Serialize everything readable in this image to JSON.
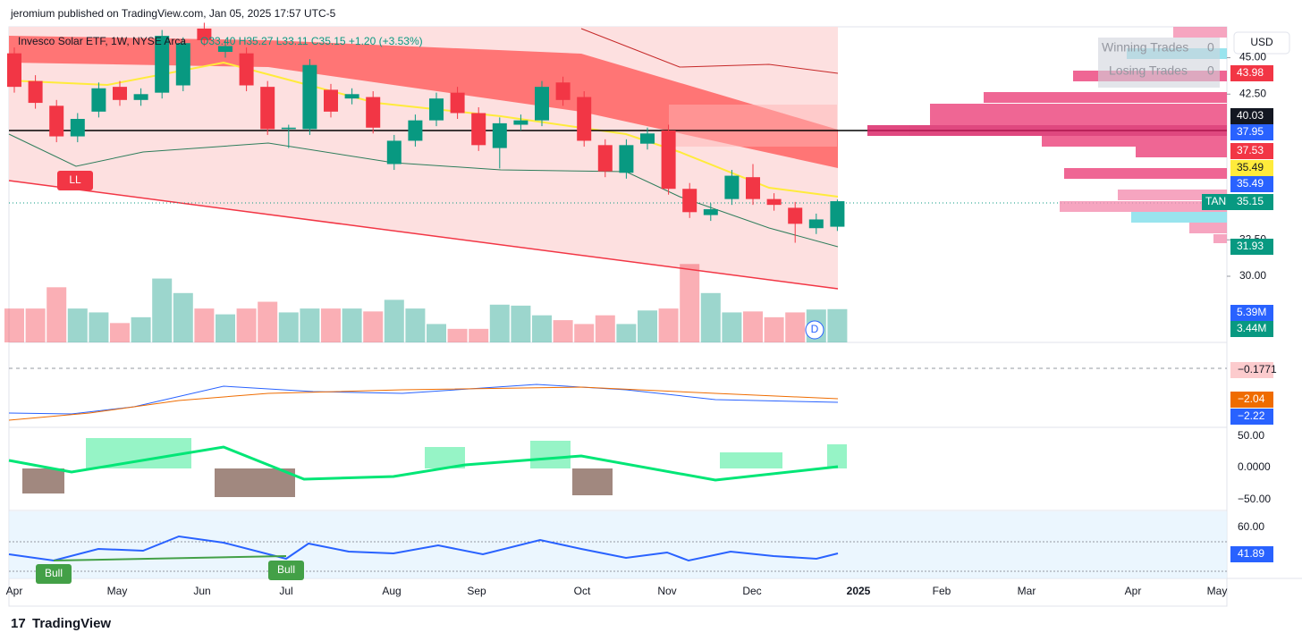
{
  "header": {
    "published": "jeromium published on TradingView.com, Jan 05, 2025 17:57 UTC-5",
    "symbol": "Invesco Solar ETF, 1W, NYSE Arca",
    "ohlc": "O33.40 H35.27 L33.11 C35.15 +1.20 (+3.53%)",
    "currency": "USD",
    "stats": [
      {
        "label": "Winning Trades",
        "value": "0"
      },
      {
        "label": "Losing Trades",
        "value": "0"
      }
    ],
    "footer": "TradingView"
  },
  "chart_data": {
    "type": "candlestick",
    "open": [
      45.3,
      43.4,
      41.7,
      39.6,
      41.3,
      43.0,
      42.1,
      42.6,
      43.1,
      47.0,
      45.4,
      45.3,
      43.0,
      40.1,
      40.1,
      42.8,
      42.2,
      42.3,
      37.7,
      39.3,
      40.7,
      42.6,
      41.2,
      38.8,
      40.4,
      40.7,
      43.3,
      42.3,
      39.0,
      37.1,
      39.1,
      40.0,
      36.0,
      34.2,
      35.3,
      36.8,
      35.3,
      34.7,
      33.3,
      33.4
    ],
    "high": [
      45.7,
      43.8,
      42.1,
      41.2,
      43.3,
      43.4,
      42.9,
      46.9,
      46.4,
      47.4,
      46.2,
      45.7,
      43.4,
      40.4,
      44.9,
      43.2,
      42.9,
      42.7,
      39.7,
      41.1,
      42.6,
      43.0,
      41.6,
      40.9,
      41.1,
      43.4,
      43.7,
      42.7,
      39.4,
      39.4,
      40.2,
      40.4,
      36.4,
      35.0,
      37.3,
      37.7,
      35.7,
      35.1,
      34.3,
      35.27
    ],
    "low": [
      42.6,
      41.5,
      39.2,
      39.2,
      40.9,
      41.7,
      41.7,
      42.2,
      42.7,
      45.8,
      45.0,
      42.7,
      39.7,
      38.8,
      39.7,
      40.9,
      41.8,
      39.8,
      37.3,
      38.9,
      40.3,
      40.8,
      38.6,
      37.4,
      40.0,
      40.3,
      41.7,
      38.9,
      36.8,
      36.7,
      38.7,
      35.6,
      34.0,
      33.8,
      34.9,
      34.9,
      34.5,
      32.3,
      32.9,
      33.11
    ],
    "close": [
      43.0,
      41.9,
      39.6,
      40.8,
      42.9,
      42.1,
      42.5,
      46.5,
      46.0,
      46.2,
      45.8,
      43.1,
      40.1,
      40.2,
      44.5,
      41.3,
      42.5,
      40.2,
      39.3,
      40.7,
      42.2,
      41.2,
      39.0,
      40.5,
      40.7,
      43.0,
      42.1,
      39.3,
      37.2,
      39.0,
      39.8,
      36.0,
      34.4,
      34.6,
      36.9,
      35.3,
      34.9,
      33.6,
      33.9,
      35.15
    ],
    "volume": [
      3.5,
      3.5,
      5.7,
      3.5,
      3.1,
      2.0,
      2.6,
      6.6,
      5.1,
      3.5,
      2.9,
      3.5,
      4.2,
      3.1,
      3.5,
      3.5,
      3.5,
      3.2,
      4.4,
      3.5,
      1.9,
      1.4,
      1.4,
      3.9,
      3.8,
      2.8,
      2.3,
      1.9,
      2.8,
      1.9,
      3.3,
      3.5,
      8.1,
      5.1,
      3.1,
      3.2,
      2.6,
      3.1,
      3.4,
      3.44
    ],
    "up_color": "#089981",
    "down_color": "#f23645",
    "ylim": [
      25.46,
      47.12
    ],
    "volume_ylim": [
      0,
      8.5
    ],
    "yticks": [
      {
        "value": 30,
        "label": "30.00"
      },
      {
        "value": 32.5,
        "label": "32.50"
      },
      {
        "value": 42.5,
        "label": "42.50"
      },
      {
        "value": 45,
        "label": "45.00"
      }
    ],
    "price_labels": [
      {
        "label": "43.98",
        "color": "#f23645"
      },
      {
        "label": "40.03",
        "color": "#131722"
      },
      {
        "label": "37.95",
        "color": "#2962ff"
      },
      {
        "label": "37.53",
        "color": "#f23645"
      },
      {
        "label": "35.49",
        "color": "#ffeb3b"
      },
      {
        "label": "35.49",
        "color": "#2962ff"
      },
      {
        "label": "35.15",
        "color": "#089981"
      },
      {
        "label": "31.93",
        "color": "#089981"
      },
      {
        "label": "5.39M",
        "color": "#2962ff"
      },
      {
        "label": "3.44M",
        "color": "#089981"
      }
    ],
    "symbol_tag": "TAN",
    "pane_labels": [
      "−0.1771",
      "−2.04",
      "−2.22",
      "50.00",
      "0.0000",
      "−50.00",
      "60.00",
      "41.89"
    ],
    "markers": [
      "LL",
      "Bull",
      "Bull",
      "D"
    ],
    "months": [
      "Apr",
      "May",
      "Jun",
      "Jul",
      "Aug",
      "Sep",
      "Oct",
      "Nov",
      "Dec",
      "2025",
      "Feb",
      "Mar",
      "Apr",
      "May"
    ]
  }
}
